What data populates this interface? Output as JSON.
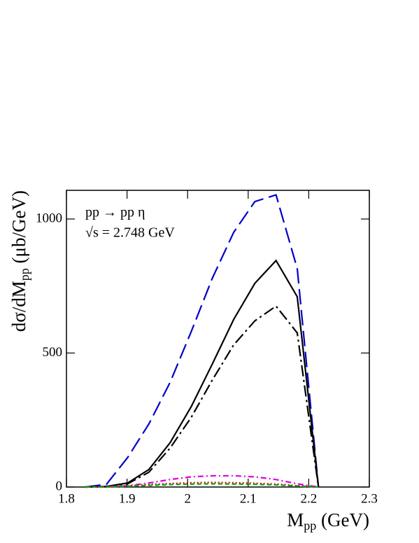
{
  "chart_data": {
    "type": "line",
    "annotations": [
      "pp → pp η",
      "√s = 2.748 GeV"
    ],
    "x_label": {
      "main": "M",
      "sub": "pp",
      "tail": " (GeV)"
    },
    "y_label": {
      "main": "dσ/dM",
      "sub": "pp",
      "tail": " (μb/GeV)"
    },
    "x": [
      1.831,
      1.866,
      1.901,
      1.936,
      1.971,
      2.006,
      2.041,
      2.076,
      2.111,
      2.146,
      2.181,
      2.216
    ],
    "series": [
      {
        "color": "#0000cc",
        "dash": "22,8",
        "values": [
          0,
          10,
          110,
          235,
          390,
          580,
          780,
          950,
          1065,
          1090,
          815,
          0
        ]
      },
      {
        "color": "#000000",
        "dash": "none",
        "values": [
          0,
          2,
          15,
          65,
          165,
          300,
          460,
          625,
          760,
          845,
          710,
          0
        ]
      },
      {
        "color": "#000000",
        "dash": "16,5,3,5",
        "values": [
          0,
          2,
          12,
          55,
          145,
          260,
          400,
          530,
          620,
          675,
          575,
          0
        ]
      },
      {
        "color": "#e000e0",
        "dash": "8,4,2,4",
        "values": [
          0,
          1,
          5,
          15,
          28,
          38,
          42,
          42,
          38,
          28,
          12,
          0
        ]
      },
      {
        "color": "#dd0000",
        "dash": "2,3",
        "values": [
          0,
          1,
          4,
          9,
          13,
          16,
          17,
          16,
          14,
          11,
          5,
          0
        ]
      },
      {
        "color": "#00aa00",
        "dash": "6,4",
        "values": [
          0,
          0,
          3,
          6,
          9,
          11,
          12,
          11,
          10,
          8,
          4,
          0
        ]
      }
    ],
    "xlim": [
      1.8,
      2.3
    ],
    "xticks": [
      1.8,
      1.9,
      2,
      2.1,
      2.2,
      2.3
    ],
    "ylim": [
      0,
      1107
    ],
    "yticks": [
      0,
      500,
      1000
    ]
  }
}
